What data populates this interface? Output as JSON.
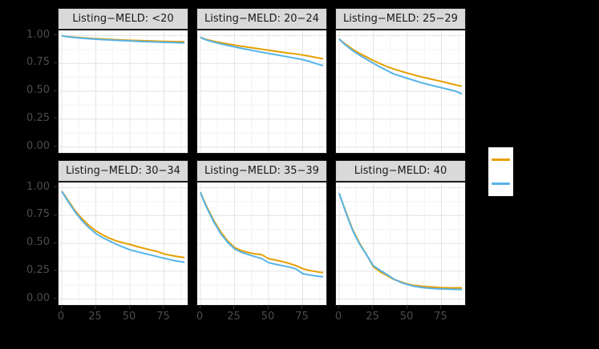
{
  "figure": {
    "background": "#000000",
    "panel_bg": "#FFFFFF",
    "strip_bg": "#D9D9D9",
    "strip_text_color": "#1A1A1A",
    "panel_border": "#1A1A1A",
    "grid_major": "#E4E4E4",
    "grid_minor": "#F2F2F2",
    "axis_text_color": "#4D4D4D",
    "tick_color": "#333333"
  },
  "chart_data": {
    "type": "line",
    "subtype": "kaplan-meier-survival-facets",
    "xlim": [
      0,
      90
    ],
    "ylim": [
      0,
      1
    ],
    "x_tick_labels": [
      "0",
      "25",
      "50",
      "75"
    ],
    "x_tick_values": [
      0,
      25,
      50,
      75
    ],
    "y_tick_labels": [
      "1.00",
      "0.75",
      "0.50",
      "0.25",
      "0.00"
    ],
    "y_tick_values": [
      1.0,
      0.75,
      0.5,
      0.25,
      0.0
    ],
    "grid": "major+minor",
    "x": [
      0,
      2,
      5,
      10,
      15,
      20,
      25,
      30,
      35,
      40,
      45,
      50,
      55,
      60,
      65,
      70,
      75,
      80,
      85,
      90
    ],
    "series_colors": {
      "orange": "#E69F00",
      "blue": "#56B4E9"
    },
    "facets": [
      {
        "label": "Listing−MELD: <20",
        "series": [
          {
            "name": "orange",
            "color": "#E69F00",
            "values": [
              1.0,
              0.995,
              0.99,
              0.985,
              0.98,
              0.976,
              0.972,
              0.969,
              0.966,
              0.963,
              0.96,
              0.958,
              0.956,
              0.954,
              0.952,
              0.95,
              0.948,
              0.947,
              0.946,
              0.945
            ]
          },
          {
            "name": "blue",
            "color": "#56B4E9",
            "values": [
              1.0,
              0.994,
              0.988,
              0.982,
              0.977,
              0.972,
              0.968,
              0.964,
              0.961,
              0.958,
              0.955,
              0.952,
              0.949,
              0.946,
              0.944,
              0.942,
              0.94,
              0.938,
              0.936,
              0.934
            ]
          }
        ]
      },
      {
        "label": "Listing−MELD: 20−24",
        "series": [
          {
            "name": "orange",
            "color": "#E69F00",
            "values": [
              0.985,
              0.975,
              0.963,
              0.948,
              0.936,
              0.925,
              0.915,
              0.905,
              0.896,
              0.887,
              0.878,
              0.869,
              0.86,
              0.851,
              0.843,
              0.835,
              0.826,
              0.815,
              0.803,
              0.792
            ]
          },
          {
            "name": "blue",
            "color": "#56B4E9",
            "values": [
              0.985,
              0.972,
              0.958,
              0.941,
              0.926,
              0.912,
              0.899,
              0.886,
              0.874,
              0.862,
              0.851,
              0.84,
              0.829,
              0.818,
              0.807,
              0.796,
              0.784,
              0.768,
              0.748,
              0.73
            ]
          }
        ]
      },
      {
        "label": "Listing−MELD: 25−29",
        "series": [
          {
            "name": "orange",
            "color": "#E69F00",
            "values": [
              0.97,
              0.948,
              0.92,
              0.876,
              0.84,
              0.808,
              0.776,
              0.748,
              0.722,
              0.7,
              0.681,
              0.663,
              0.646,
              0.63,
              0.616,
              0.602,
              0.588,
              0.573,
              0.558,
              0.545
            ]
          },
          {
            "name": "blue",
            "color": "#56B4E9",
            "values": [
              0.97,
              0.944,
              0.912,
              0.864,
              0.824,
              0.788,
              0.752,
              0.718,
              0.686,
              0.656,
              0.636,
              0.616,
              0.597,
              0.578,
              0.562,
              0.547,
              0.532,
              0.517,
              0.502,
              0.476
            ]
          }
        ]
      },
      {
        "label": "Listing−MELD: 30−34",
        "series": [
          {
            "name": "orange",
            "color": "#E69F00",
            "values": [
              0.97,
              0.935,
              0.88,
              0.79,
              0.72,
              0.66,
              0.612,
              0.576,
              0.546,
              0.522,
              0.505,
              0.49,
              0.472,
              0.456,
              0.441,
              0.427,
              0.405,
              0.392,
              0.381,
              0.372
            ]
          },
          {
            "name": "blue",
            "color": "#56B4E9",
            "values": [
              0.968,
              0.928,
              0.87,
              0.778,
              0.702,
              0.64,
              0.588,
              0.551,
              0.521,
              0.492,
              0.466,
              0.442,
              0.426,
              0.411,
              0.396,
              0.381,
              0.366,
              0.351,
              0.34,
              0.33
            ]
          }
        ]
      },
      {
        "label": "Listing−MELD: 35−39",
        "series": [
          {
            "name": "orange",
            "color": "#E69F00",
            "values": [
              0.96,
              0.9,
              0.82,
              0.7,
              0.6,
              0.52,
              0.462,
              0.435,
              0.418,
              0.405,
              0.398,
              0.362,
              0.35,
              0.336,
              0.32,
              0.3,
              0.272,
              0.256,
              0.245,
              0.236
            ]
          },
          {
            "name": "blue",
            "color": "#56B4E9",
            "values": [
              0.958,
              0.894,
              0.81,
              0.688,
              0.585,
              0.508,
              0.45,
              0.42,
              0.4,
              0.38,
              0.362,
              0.326,
              0.312,
              0.3,
              0.288,
              0.27,
              0.228,
              0.216,
              0.206,
              0.2
            ]
          }
        ]
      },
      {
        "label": "Listing−MELD: 40",
        "series": [
          {
            "name": "orange",
            "color": "#E69F00",
            "values": [
              0.95,
              0.88,
              0.78,
              0.62,
              0.5,
              0.4,
              0.29,
              0.245,
              0.21,
              0.176,
              0.155,
              0.135,
              0.122,
              0.115,
              0.11,
              0.106,
              0.102,
              0.1,
              0.1,
              0.1
            ]
          },
          {
            "name": "blue",
            "color": "#56B4E9",
            "values": [
              0.95,
              0.878,
              0.772,
              0.612,
              0.492,
              0.398,
              0.3,
              0.258,
              0.22,
              0.18,
              0.15,
              0.13,
              0.114,
              0.104,
              0.098,
              0.093,
              0.09,
              0.088,
              0.086,
              0.085
            ]
          }
        ]
      }
    ],
    "legend": {
      "position": "right",
      "entries": [
        {
          "name": "orange",
          "color": "#E69F00"
        },
        {
          "name": "blue",
          "color": "#56B4E9"
        }
      ]
    }
  }
}
